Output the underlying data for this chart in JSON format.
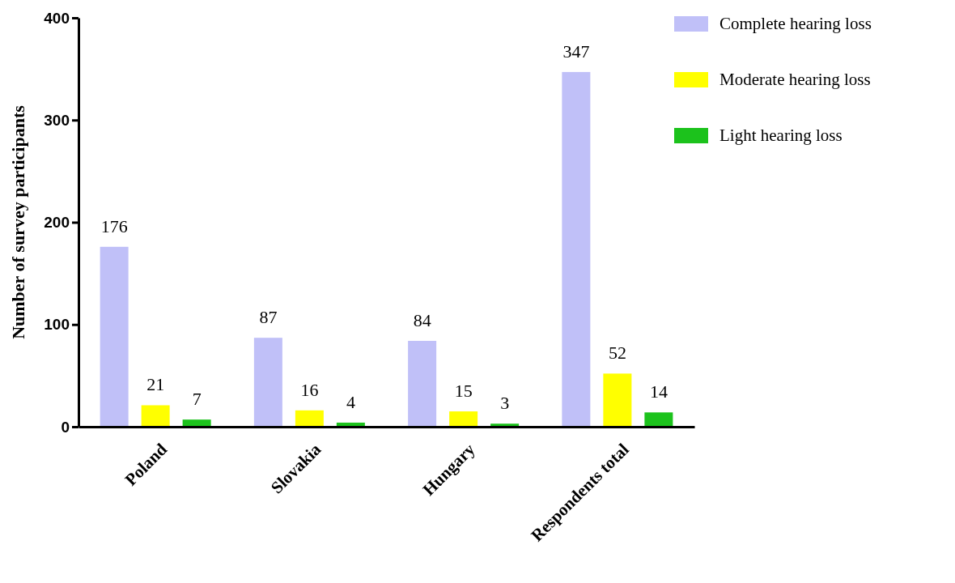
{
  "chart_data": {
    "type": "bar",
    "ylabel": "Number of survey participants",
    "categories": [
      "Poland",
      "Slovakia",
      "Hungary",
      "Respondents total"
    ],
    "series": [
      {
        "name": "Complete hearing loss",
        "color": "#c0c0f8",
        "values": [
          176,
          87,
          84,
          347
        ]
      },
      {
        "name": "Moderate hearing loss",
        "color": "#ffff00",
        "values": [
          21,
          16,
          15,
          52
        ]
      },
      {
        "name": "Light hearing loss",
        "color": "#1cc21c",
        "values": [
          7,
          4,
          3,
          14
        ]
      }
    ],
    "ylim": [
      0,
      400
    ],
    "yticks": [
      0,
      100,
      200,
      300,
      400
    ],
    "grid": false,
    "legend": "top right",
    "data_labels": true
  }
}
